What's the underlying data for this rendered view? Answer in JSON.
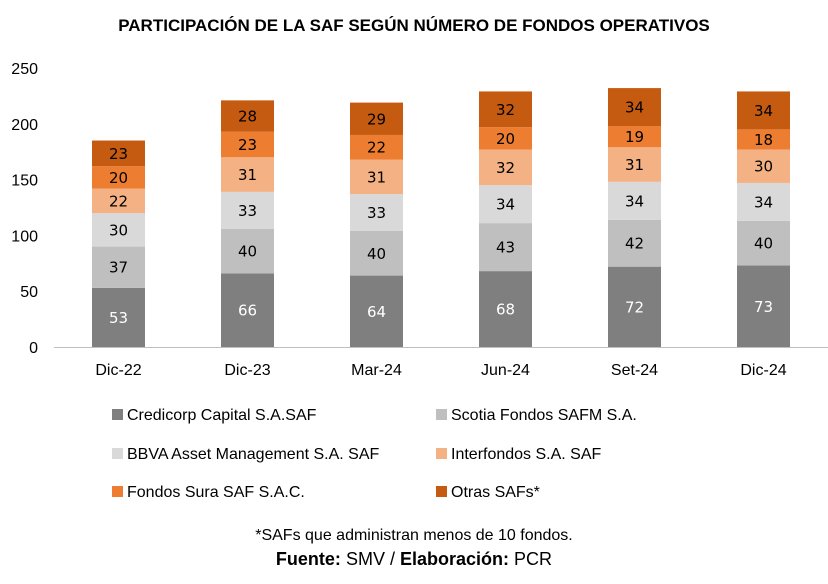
{
  "chart_data": {
    "type": "bar",
    "stacked": true,
    "title": "PARTICIPACIÓN DE LA SAF SEGÚN NÚMERO DE FONDOS OPERATIVOS",
    "categories": [
      "Dic-22",
      "Dic-23",
      "Mar-24",
      "Jun-24",
      "Set-24",
      "Dic-24"
    ],
    "ylim": [
      0,
      250
    ],
    "yticks": [
      0,
      50,
      100,
      150,
      200,
      250
    ],
    "grid": false,
    "legend_position": "bottom",
    "series": [
      {
        "name": "Credicorp Capital S.A.SAF",
        "color": "#7f7f7f",
        "label_color": "#ffffff",
        "values": [
          53,
          66,
          64,
          68,
          72,
          73
        ]
      },
      {
        "name": "Scotia Fondos SAFM S.A.",
        "color": "#bfbfbf",
        "label_color": "#000000",
        "values": [
          37,
          40,
          40,
          43,
          42,
          40
        ]
      },
      {
        "name": "BBVA Asset Management S.A. SAF",
        "color": "#d9d9d9",
        "label_color": "#000000",
        "values": [
          30,
          33,
          33,
          34,
          34,
          34
        ]
      },
      {
        "name": "Interfondos S.A. SAF",
        "color": "#f4b183",
        "label_color": "#000000",
        "values": [
          22,
          31,
          31,
          32,
          31,
          30
        ]
      },
      {
        "name": "Fondos Sura SAF S.A.C.",
        "color": "#ed7d31",
        "label_color": "#000000",
        "values": [
          20,
          23,
          22,
          20,
          19,
          18
        ]
      },
      {
        "name": "Otras SAFs*",
        "color": "#c55a11",
        "label_color": "#000000",
        "values": [
          23,
          28,
          29,
          32,
          34,
          34
        ]
      }
    ]
  },
  "footnote": "*SAFs que administran menos de 10 fondos.",
  "source": {
    "fuente_label": "Fuente:",
    "fuente_value": "SMV",
    "separator": "/",
    "elaboracion_label": "Elaboración:",
    "elaboracion_value": "PCR"
  }
}
